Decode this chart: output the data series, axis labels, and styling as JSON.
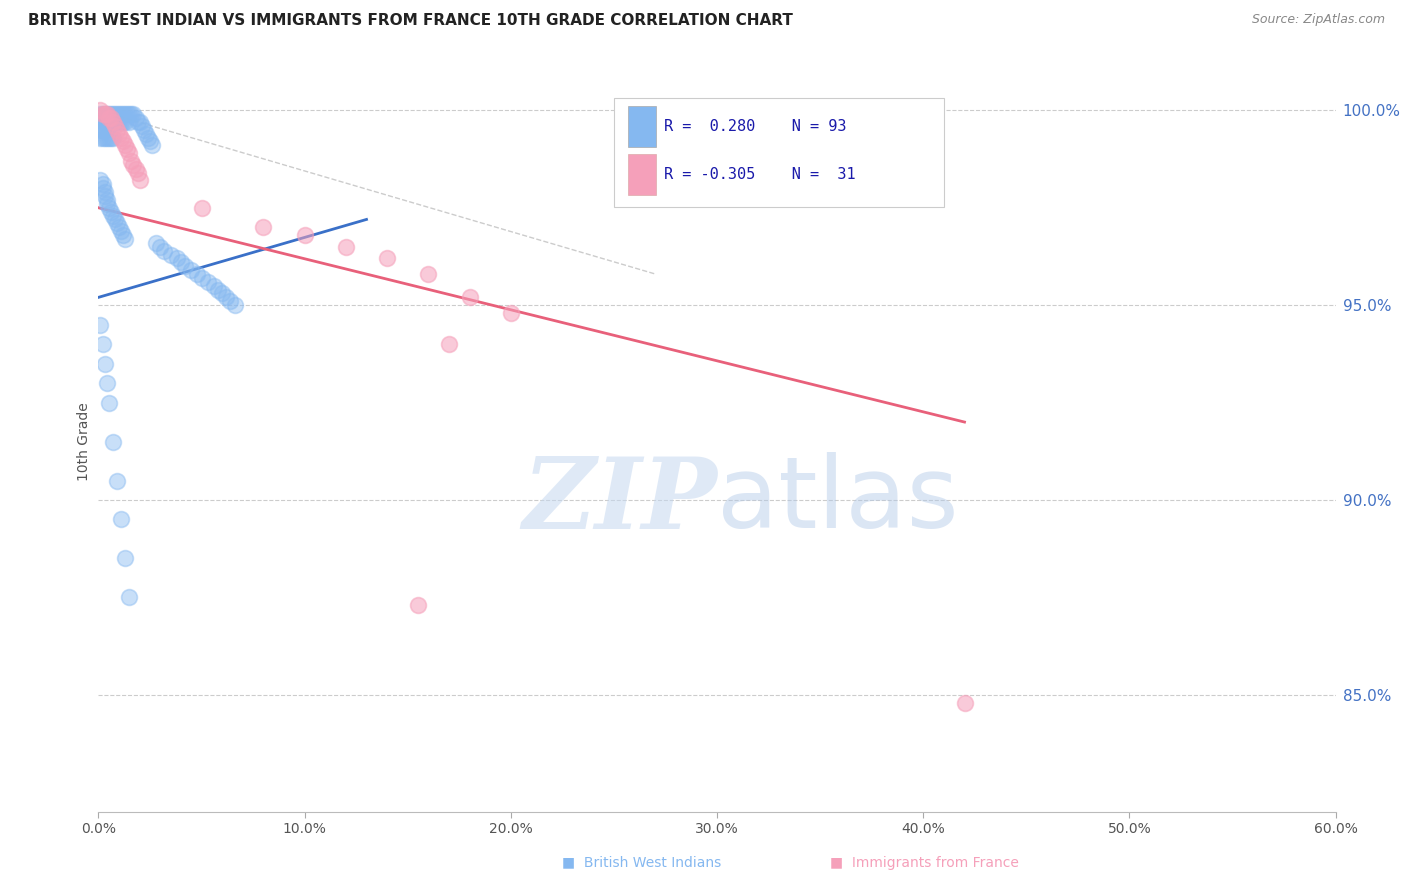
{
  "title": "BRITISH WEST INDIAN VS IMMIGRANTS FROM FRANCE 10TH GRADE CORRELATION CHART",
  "source": "Source: ZipAtlas.com",
  "ylabel": "10th Grade",
  "ylabel_ticks": [
    "100.0%",
    "95.0%",
    "90.0%",
    "85.0%"
  ],
  "ylabel_values": [
    1.0,
    0.95,
    0.9,
    0.85
  ],
  "xmin": 0.0,
  "xmax": 0.6,
  "ymin": 0.82,
  "ymax": 1.01,
  "legend_blue_r": "0.280",
  "legend_blue_n": "93",
  "legend_pink_r": "-0.305",
  "legend_pink_n": "31",
  "blue_color": "#85b8f0",
  "pink_color": "#f5a0ba",
  "blue_line_color": "#3a70c8",
  "pink_line_color": "#e8607a",
  "grid_color": "#cccccc",
  "background_color": "#ffffff",
  "blue_line": {
    "x0": 0.0,
    "x1": 0.13,
    "y0": 0.952,
    "y1": 0.972
  },
  "pink_line": {
    "x0": 0.0,
    "x1": 0.42,
    "y0": 0.975,
    "y1": 0.92
  },
  "diag_line": {
    "x0": 0.0,
    "x1": 0.27,
    "y0": 1.0,
    "y1": 0.958
  },
  "blue_scatter_x": [
    0.001,
    0.001,
    0.001,
    0.001,
    0.002,
    0.002,
    0.002,
    0.002,
    0.003,
    0.003,
    0.003,
    0.003,
    0.004,
    0.004,
    0.004,
    0.005,
    0.005,
    0.005,
    0.006,
    0.006,
    0.006,
    0.007,
    0.007,
    0.007,
    0.008,
    0.008,
    0.009,
    0.009,
    0.01,
    0.01,
    0.011,
    0.011,
    0.012,
    0.012,
    0.013,
    0.013,
    0.014,
    0.015,
    0.015,
    0.016,
    0.017,
    0.018,
    0.019,
    0.02,
    0.021,
    0.022,
    0.023,
    0.024,
    0.025,
    0.026,
    0.001,
    0.002,
    0.002,
    0.003,
    0.003,
    0.004,
    0.004,
    0.005,
    0.006,
    0.007,
    0.008,
    0.009,
    0.01,
    0.011,
    0.012,
    0.013,
    0.028,
    0.03,
    0.032,
    0.035,
    0.038,
    0.04,
    0.042,
    0.045,
    0.048,
    0.05,
    0.053,
    0.056,
    0.058,
    0.06,
    0.062,
    0.064,
    0.066,
    0.001,
    0.002,
    0.003,
    0.004,
    0.005,
    0.007,
    0.009,
    0.011,
    0.013,
    0.015
  ],
  "blue_scatter_y": [
    0.999,
    0.997,
    0.995,
    0.993,
    0.999,
    0.997,
    0.995,
    0.993,
    0.999,
    0.997,
    0.995,
    0.993,
    0.999,
    0.997,
    0.993,
    0.999,
    0.997,
    0.993,
    0.999,
    0.997,
    0.993,
    0.999,
    0.997,
    0.993,
    0.999,
    0.997,
    0.999,
    0.997,
    0.999,
    0.997,
    0.999,
    0.997,
    0.999,
    0.997,
    0.999,
    0.997,
    0.999,
    0.999,
    0.997,
    0.999,
    0.999,
    0.998,
    0.997,
    0.997,
    0.996,
    0.995,
    0.994,
    0.993,
    0.992,
    0.991,
    0.982,
    0.981,
    0.98,
    0.979,
    0.978,
    0.977,
    0.976,
    0.975,
    0.974,
    0.973,
    0.972,
    0.971,
    0.97,
    0.969,
    0.968,
    0.967,
    0.966,
    0.965,
    0.964,
    0.963,
    0.962,
    0.961,
    0.96,
    0.959,
    0.958,
    0.957,
    0.956,
    0.955,
    0.954,
    0.953,
    0.952,
    0.951,
    0.95,
    0.945,
    0.94,
    0.935,
    0.93,
    0.925,
    0.915,
    0.905,
    0.895,
    0.885,
    0.875
  ],
  "pink_scatter_x": [
    0.001,
    0.002,
    0.003,
    0.004,
    0.005,
    0.006,
    0.007,
    0.008,
    0.009,
    0.01,
    0.011,
    0.012,
    0.013,
    0.014,
    0.015,
    0.016,
    0.017,
    0.018,
    0.019,
    0.02,
    0.05,
    0.08,
    0.1,
    0.12,
    0.14,
    0.16,
    0.18,
    0.155,
    0.2,
    0.17,
    0.42
  ],
  "pink_scatter_y": [
    1.0,
    0.999,
    0.999,
    0.999,
    0.998,
    0.998,
    0.997,
    0.996,
    0.995,
    0.994,
    0.993,
    0.992,
    0.991,
    0.99,
    0.989,
    0.987,
    0.986,
    0.985,
    0.984,
    0.982,
    0.975,
    0.97,
    0.968,
    0.965,
    0.962,
    0.958,
    0.952,
    0.873,
    0.948,
    0.94,
    0.848
  ]
}
